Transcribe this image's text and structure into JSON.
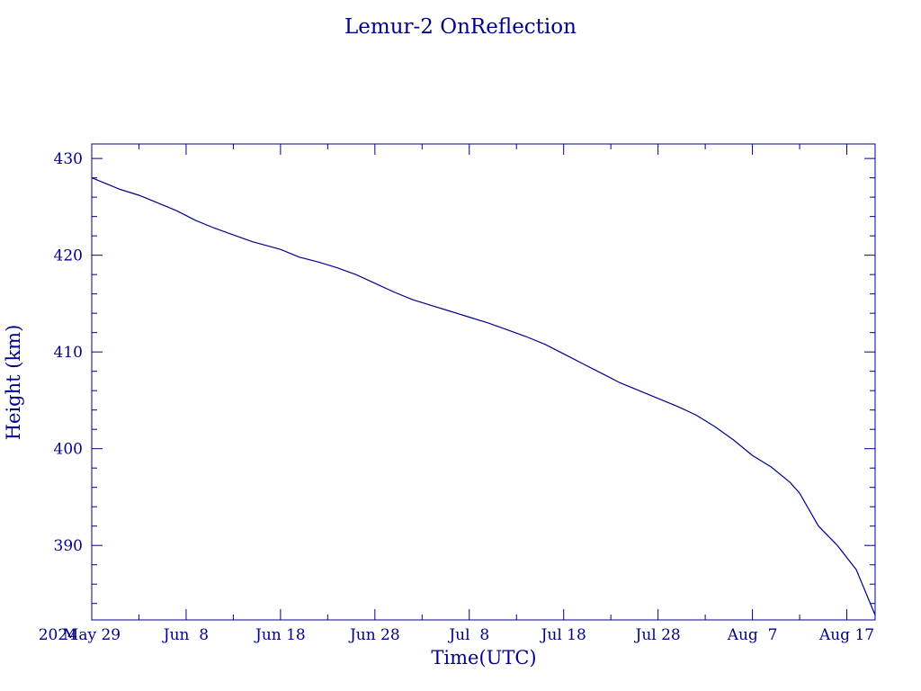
{
  "chart_data": {
    "type": "line",
    "title": "Lemur-2 OnReflection",
    "xlabel": "Time(UTC)",
    "ylabel": "Height (km)",
    "color": "#00008b",
    "grid": false,
    "x_start_label": "2024",
    "xlim": [
      "2024-05-29",
      "2024-08-20"
    ],
    "ylim": [
      382.3,
      431.5
    ],
    "x_tick_labels": [
      "May 29",
      "Jun  8",
      "Jun 18",
      "Jun 28",
      "Jul  8",
      "Jul 18",
      "Jul 28",
      "Aug  7",
      "Aug 17"
    ],
    "x_tick_dates": [
      "2024-05-29",
      "2024-06-08",
      "2024-06-18",
      "2024-06-28",
      "2024-07-08",
      "2024-07-18",
      "2024-07-28",
      "2024-08-07",
      "2024-08-17"
    ],
    "y_tick_labels": [
      "390",
      "400",
      "410",
      "420",
      "430"
    ],
    "y_tick_values": [
      390,
      400,
      410,
      420,
      430
    ],
    "series": [
      {
        "x": [
          "2024-05-29",
          "2024-05-31",
          "2024-06-01",
          "2024-06-03",
          "2024-06-05",
          "2024-06-07",
          "2024-06-09",
          "2024-06-11",
          "2024-06-13",
          "2024-06-15",
          "2024-06-18",
          "2024-06-20",
          "2024-06-22",
          "2024-06-24",
          "2024-06-26",
          "2024-06-28",
          "2024-06-30",
          "2024-07-02",
          "2024-07-04",
          "2024-07-06",
          "2024-07-08",
          "2024-07-10",
          "2024-07-12",
          "2024-07-14",
          "2024-07-16",
          "2024-07-18",
          "2024-07-20",
          "2024-07-22",
          "2024-07-24",
          "2024-07-26",
          "2024-07-28",
          "2024-07-30",
          "2024-08-01",
          "2024-08-03",
          "2024-08-05",
          "2024-08-07",
          "2024-08-09",
          "2024-08-11",
          "2024-08-12",
          "2024-08-14",
          "2024-08-16",
          "2024-08-18",
          "2024-08-20"
        ],
        "y": [
          428.0,
          427.2,
          426.8,
          426.2,
          425.4,
          424.6,
          423.6,
          422.8,
          422.1,
          421.4,
          420.6,
          419.8,
          419.3,
          418.7,
          418.0,
          417.1,
          416.2,
          415.4,
          414.8,
          414.2,
          413.6,
          413.0,
          412.3,
          411.6,
          410.8,
          409.8,
          408.8,
          407.8,
          406.8,
          406.0,
          405.2,
          404.4,
          403.5,
          402.3,
          400.9,
          399.3,
          398.1,
          396.5,
          395.4,
          392.0,
          390.0,
          387.5,
          382.8
        ]
      }
    ]
  }
}
